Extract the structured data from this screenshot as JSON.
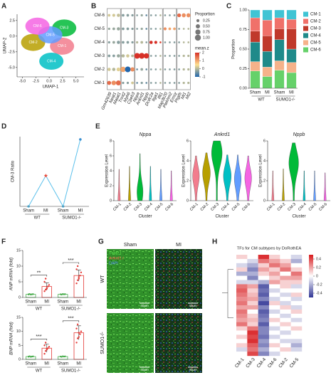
{
  "panel_labels": [
    "A",
    "B",
    "C",
    "D",
    "E",
    "F",
    "G",
    "H"
  ],
  "chart_data": [
    {
      "type": "scatter",
      "xlabel": "UMAP-1",
      "ylabel": "UMAP-2",
      "xlim": [
        -6,
        6.5
      ],
      "ylim": [
        -6.5,
        3.5
      ],
      "xticks": [
        {
          "value": -5,
          "label": "-5.0"
        },
        {
          "value": -2.5,
          "label": "-2.5"
        },
        {
          "value": 0,
          "label": "0.0"
        },
        {
          "value": 2.5,
          "label": "2.5"
        },
        {
          "value": 5,
          "label": "5.0"
        }
      ],
      "yticks": [
        {
          "value": 2.5,
          "label": "2.5"
        },
        {
          "value": 0,
          "label": "0.0"
        },
        {
          "value": -2.5,
          "label": "-2.5"
        },
        {
          "value": -5,
          "label": "-5.0"
        }
      ],
      "series": [
        {
          "name": "CM-1",
          "color": "#f27c8d",
          "x": [
            2.4
          ],
          "y": [
            -1.6
          ]
        },
        {
          "name": "CM-2",
          "color": "#b79f00",
          "x": [
            -3.0
          ],
          "y": [
            -1.0
          ]
        },
        {
          "name": "CM-3",
          "color": "#00ba38",
          "x": [
            2.8
          ],
          "y": [
            1.3
          ]
        },
        {
          "name": "CM-4",
          "color": "#00bfc4",
          "x": [
            0.4
          ],
          "y": [
            -4.0
          ]
        },
        {
          "name": "CM-5",
          "color": "#619cff",
          "x": [
            0.2
          ],
          "y": [
            0.2
          ]
        },
        {
          "name": "CM-6",
          "color": "#f564e3",
          "x": [
            -2.2
          ],
          "y": [
            1.6
          ]
        }
      ]
    },
    {
      "type": "dotplot",
      "rows": [
        "CM-1",
        "CM-2",
        "CM-3",
        "CM-4",
        "CM-5",
        "CM-6"
      ],
      "genes": [
        "Gm42639",
        "Neat1",
        "Malat1",
        "Tnnt2",
        "Myh6",
        "Cpeb3",
        "Nppa",
        "Ankrd1",
        "Nppb",
        "Dcdc2a",
        "Itga1",
        "Ifit1",
        "Map3k20",
        "Plekhm2",
        "Emsy",
        "Ptgds",
        "Mt1",
        "Mt2"
      ],
      "sizes": [
        [
          0.45,
          0.6,
          0.7,
          0.15,
          0.15,
          0.2,
          0.1,
          0.15,
          0.1,
          0.1,
          0.1,
          0.1,
          0.1,
          0.1,
          0.1,
          0.1,
          0.15,
          0.15
        ],
        [
          0.3,
          0.3,
          0.4,
          0.8,
          0.9,
          0.5,
          0.1,
          0.2,
          0.1,
          0.1,
          0.1,
          0.1,
          0.1,
          0.1,
          0.1,
          0.1,
          0.15,
          0.15
        ],
        [
          0.2,
          0.2,
          0.3,
          0.3,
          0.3,
          0.2,
          0.9,
          0.95,
          0.8,
          0.1,
          0.1,
          0.1,
          0.1,
          0.1,
          0.1,
          0.1,
          0.15,
          0.15
        ],
        [
          0.15,
          0.2,
          0.3,
          0.2,
          0.2,
          0.15,
          0.15,
          0.2,
          0.1,
          0.3,
          0.25,
          0.1,
          0.1,
          0.1,
          0.1,
          0.1,
          0.1,
          0.1
        ],
        [
          0.15,
          0.2,
          0.3,
          0.2,
          0.2,
          0.15,
          0.1,
          0.15,
          0.1,
          0.1,
          0.1,
          0.1,
          0.25,
          0.2,
          0.2,
          0.1,
          0.1,
          0.1
        ],
        [
          0.2,
          0.25,
          0.3,
          0.2,
          0.2,
          0.15,
          0.1,
          0.15,
          0.1,
          0.1,
          0.1,
          0.1,
          0.1,
          0.1,
          0.1,
          0.4,
          0.45,
          0.45
        ]
      ],
      "values": [
        [
          1.5,
          1.2,
          1.5,
          -0.3,
          -0.3,
          0.2,
          -0.5,
          -0.3,
          -0.5,
          -0.3,
          -0.3,
          0,
          -0.3,
          -0.3,
          -0.3,
          -0.3,
          0,
          0
        ],
        [
          0.2,
          0,
          0.3,
          1,
          -1,
          1.2,
          -0.5,
          -0.2,
          -0.5,
          -0.3,
          -0.3,
          0,
          -0.3,
          -0.3,
          -0.3,
          -0.3,
          0,
          0
        ],
        [
          -0.3,
          -0.3,
          -0.2,
          0,
          0.2,
          0,
          2,
          2,
          2,
          -0.3,
          -0.3,
          0,
          -0.3,
          -0.3,
          -0.3,
          -0.3,
          0,
          0
        ],
        [
          -0.3,
          -0.2,
          -0.3,
          -0.3,
          -0.3,
          -0.3,
          0,
          0,
          -0.3,
          2,
          2,
          1.8,
          -0.3,
          -0.3,
          -0.3,
          -0.3,
          0,
          0
        ],
        [
          -0.2,
          -0.2,
          -0.2,
          -0.3,
          -0.3,
          -0.3,
          -0.3,
          -0.2,
          -0.5,
          -0.3,
          -0.3,
          0,
          1.2,
          1,
          1,
          -0.3,
          0,
          0
        ],
        [
          0.2,
          0.2,
          0.1,
          -0.3,
          -0.3,
          -0.3,
          -0.3,
          -0.2,
          -0.5,
          -0.3,
          -0.3,
          0,
          -0.3,
          -0.3,
          -0.3,
          1.5,
          1.2,
          1.2
        ]
      ],
      "size_title": "Proportion",
      "size_ticks": [
        {
          "value": 0.25,
          "label": "0.25"
        },
        {
          "value": 0.5,
          "label": "0.50"
        },
        {
          "value": 0.75,
          "label": "0.75"
        },
        {
          "value": 1,
          "label": "1.00"
        }
      ],
      "color_title": "mean.z",
      "clim": [
        -1,
        2
      ],
      "color_ticks": [
        2,
        1,
        0,
        -1
      ],
      "colormap": [
        "#2166ac",
        "#fee090",
        "#d73027"
      ]
    },
    {
      "type": "stacked_bar",
      "ylabel": "Proportion",
      "categories": [
        "Sham",
        "MI",
        "Sham",
        "MI"
      ],
      "groups": [
        "WT",
        "SUMO1-/-"
      ],
      "ylim": [
        0,
        1
      ],
      "yticks": [
        {
          "value": 0,
          "label": "0.00"
        },
        {
          "value": 0.25,
          "label": "0.25"
        },
        {
          "value": 0.5,
          "label": "0.50"
        },
        {
          "value": 0.75,
          "label": "0.75"
        },
        {
          "value": 1,
          "label": "1.00"
        }
      ],
      "series": [
        {
          "name": "CM-1",
          "color": "#40c4d4",
          "values": [
            0.1,
            0.13,
            0.1,
            0.12
          ]
        },
        {
          "name": "CM-2",
          "color": "#f0716a",
          "values": [
            0.17,
            0.2,
            0.14,
            0.12
          ]
        },
        {
          "name": "CM-3",
          "color": "#c0392b",
          "values": [
            0.14,
            0.2,
            0.14,
            0.26
          ]
        },
        {
          "name": "CM-4",
          "color": "#1f8a8a",
          "values": [
            0.25,
            0.2,
            0.27,
            0.17
          ]
        },
        {
          "name": "CM-5",
          "color": "#f6b28a",
          "values": [
            0.12,
            0.12,
            0.12,
            0.13
          ]
        },
        {
          "name": "CM-6",
          "color": "#66d16a",
          "values": [
            0.22,
            0.15,
            0.23,
            0.2
          ]
        }
      ]
    },
    {
      "type": "line",
      "ylabel": "CM-3 Ratio",
      "categories": [
        "Sham",
        "MI",
        "Sham",
        "MI"
      ],
      "groups": [
        "WT",
        "SUMO1-/-"
      ],
      "values": [
        0.14,
        0.195,
        0.14,
        0.26
      ],
      "ylim": [
        0.14,
        0.265
      ],
      "color": "#5bc0eb",
      "markers": [
        "circle",
        "star",
        "circle",
        "circle"
      ],
      "marker_colors": [
        "#5bc0eb",
        "#e74c3c",
        "#5bc0eb",
        "#3a8fd0"
      ]
    },
    {
      "type": "violin",
      "title": "Nppa",
      "ylabel": "Expression Level",
      "xlabel": "Cluster",
      "categories": [
        "CM-1",
        "CM-2",
        "CM-3",
        "CM-4",
        "CM-5",
        "CM-6"
      ],
      "colors": [
        "#f27c8d",
        "#b79f00",
        "#00ba38",
        "#00bfc4",
        "#619cff",
        "#f564e3"
      ],
      "ylim": [
        0,
        8
      ],
      "yticks": [
        0,
        2,
        4,
        6,
        8
      ],
      "values": [
        4.2,
        4.6,
        6.3,
        4.6,
        4.2,
        4.0
      ],
      "peaks": [
        0.2,
        0.2,
        1.2,
        0.2,
        0.2,
        0.2
      ],
      "widths": [
        0.12,
        0.12,
        0.5,
        0.12,
        0.12,
        0.12
      ]
    },
    {
      "type": "violin",
      "title": "Ankrd1",
      "ylabel": "Expression Level",
      "xlabel": "Cluster",
      "categories": [
        "CM-1",
        "CM-2",
        "CM-3",
        "CM-4",
        "CM-5",
        "CM-6"
      ],
      "colors": [
        "#f27c8d",
        "#b79f00",
        "#00ba38",
        "#00bfc4",
        "#619cff",
        "#f564e3"
      ],
      "ylim": [
        0,
        6
      ],
      "yticks": [
        0,
        2,
        4,
        6
      ],
      "values": [
        4.5,
        4.8,
        6.0,
        4.6,
        4.6,
        4.5
      ],
      "peaks": [
        2.5,
        2.8,
        4.8,
        2.5,
        2.2,
        2.3
      ],
      "widths": [
        0.6,
        0.7,
        1,
        0.7,
        0.6,
        0.6
      ]
    },
    {
      "type": "violin",
      "title": "Nppb",
      "ylabel": "Expression Level",
      "xlabel": "Cluster",
      "categories": [
        "CM-1",
        "CM-2",
        "CM-3",
        "CM-4",
        "CM-5",
        "CM-6"
      ],
      "colors": [
        "#f27c8d",
        "#b79f00",
        "#00ba38",
        "#00bfc4",
        "#619cff",
        "#f564e3"
      ],
      "ylim": [
        0,
        6
      ],
      "yticks": [
        0,
        2,
        4,
        6
      ],
      "values": [
        3.0,
        3.2,
        5.8,
        3.0,
        3.0,
        2.8
      ],
      "peaks": [
        0.1,
        0.1,
        3.8,
        0.1,
        0.1,
        0.1
      ],
      "widths": [
        0.1,
        0.1,
        0.9,
        0.1,
        0.1,
        0.1
      ]
    },
    {
      "type": "bar_points",
      "ylabel": "ANP mRNA (fold)",
      "categories": [
        "Sham",
        "MI",
        "Sham",
        "MI"
      ],
      "groups": [
        "WT",
        "SUMO1-/-"
      ],
      "ylim": [
        0,
        15
      ],
      "yticks": [
        0,
        5,
        10,
        15
      ],
      "values": [
        1,
        3.5,
        1,
        7
      ],
      "errors": [
        0.1,
        1.2,
        0.1,
        1.8
      ],
      "colors": [
        "#4caf50",
        "#e53935",
        "#4caf50",
        "#e53935"
      ],
      "points": [
        [
          1,
          1.1,
          0.9,
          1,
          1.05,
          0.95
        ],
        [
          2,
          2.5,
          3,
          3.5,
          4,
          5,
          6,
          2.8
        ],
        [
          1,
          0.9,
          1.1,
          1,
          1.05
        ],
        [
          4.5,
          5.5,
          6,
          7,
          8,
          9,
          10,
          6.5
        ]
      ],
      "significance": [
        "**",
        "***"
      ]
    },
    {
      "type": "bar_points",
      "ylabel": "BNP mRNA (fold)",
      "categories": [
        "Sham",
        "MI",
        "Sham",
        "MI"
      ],
      "groups": [
        "WT",
        "SUMO1-/-"
      ],
      "ylim": [
        0,
        15
      ],
      "yticks": [
        0,
        5,
        10,
        15
      ],
      "values": [
        1,
        4,
        1,
        9.5
      ],
      "errors": [
        0.1,
        1.5,
        0.1,
        2.5
      ],
      "colors": [
        "#4caf50",
        "#e53935",
        "#4caf50",
        "#e53935"
      ],
      "points": [
        [
          1,
          1.1,
          0.9,
          1,
          1.05,
          0.95
        ],
        [
          2,
          3,
          3.5,
          4,
          4.5,
          5,
          6,
          3.8
        ],
        [
          1,
          0.9,
          1.1,
          1,
          1.05
        ],
        [
          6,
          7.5,
          8,
          9,
          10,
          11,
          12.5,
          9.5
        ]
      ],
      "significance": [
        "***",
        "***"
      ]
    },
    {
      "type": "heatmap",
      "title": "TFs for CM subtypes by DoRothEA",
      "columns": [
        "CM-1",
        "CM-3",
        "CM-4",
        "CM-6",
        "CM-2",
        "CM-5"
      ],
      "clim": [
        -0.5,
        0.5
      ],
      "colorbar_ticks": [
        0.4,
        0.2,
        0,
        -0.2,
        -0.4
      ],
      "colormap": [
        "#313695",
        "#ffffff",
        "#d7191c"
      ],
      "values": [
        [
          0.1,
          0,
          0.45,
          0.1,
          0,
          -0.1
        ],
        [
          0,
          -0.1,
          0.3,
          0.2,
          0.1,
          -0.2
        ],
        [
          -0.1,
          -0.2,
          0.1,
          0.3,
          0.2,
          0
        ],
        [
          0.1,
          -0.3,
          0.2,
          0.1,
          0.3,
          0.1
        ],
        [
          -0.2,
          -0.2,
          0.1,
          0.2,
          0,
          0.3
        ],
        [
          0,
          -0.3,
          0,
          0.1,
          0.2,
          0.2
        ],
        [
          -0.1,
          -0.1,
          -0.2,
          0.2,
          0.1,
          0.1
        ],
        [
          0.3,
          0.2,
          -0.4,
          0,
          0.1,
          -0.1
        ],
        [
          0.35,
          0.1,
          -0.35,
          -0.1,
          0,
          0
        ],
        [
          0.3,
          0.15,
          -0.4,
          0,
          -0.1,
          0.1
        ],
        [
          0.25,
          0.2,
          -0.3,
          -0.1,
          0,
          -0.1
        ],
        [
          0.3,
          0.1,
          -0.45,
          0.1,
          -0.1,
          0
        ],
        [
          0.2,
          0.2,
          -0.3,
          0,
          0.1,
          -0.1
        ],
        [
          0.3,
          0,
          -0.4,
          -0.1,
          0,
          0.1
        ],
        [
          0.25,
          0.1,
          -0.35,
          0,
          -0.1,
          0
        ],
        [
          0.2,
          0.15,
          -0.3,
          0.1,
          0,
          -0.1
        ],
        [
          0.3,
          0.1,
          -0.4,
          0,
          0.1,
          0
        ],
        [
          0.1,
          0.3,
          -0.3,
          -0.1,
          0,
          0.1
        ],
        [
          0,
          0.45,
          -0.3,
          0,
          -0.1,
          0
        ],
        [
          0.1,
          0.4,
          -0.35,
          -0.1,
          0,
          0
        ],
        [
          0,
          0.45,
          -0.25,
          0,
          -0.1,
          -0.1
        ],
        [
          0.1,
          0.35,
          -0.3,
          0.1,
          0,
          -0.2
        ],
        [
          -0.1,
          0.3,
          -0.2,
          0,
          0.1,
          -0.1
        ],
        [
          0,
          0.4,
          -0.3,
          -0.1,
          0,
          0
        ]
      ]
    }
  ],
  "images": {
    "columns": [
      "Sham",
      "MI"
    ],
    "rows": [
      "WT",
      "SUMO1-/-"
    ],
    "stain_labels": [
      "Tnnt2 /",
      "Ankrd1 /",
      "DAPI"
    ],
    "scale_bar": "40µm"
  }
}
